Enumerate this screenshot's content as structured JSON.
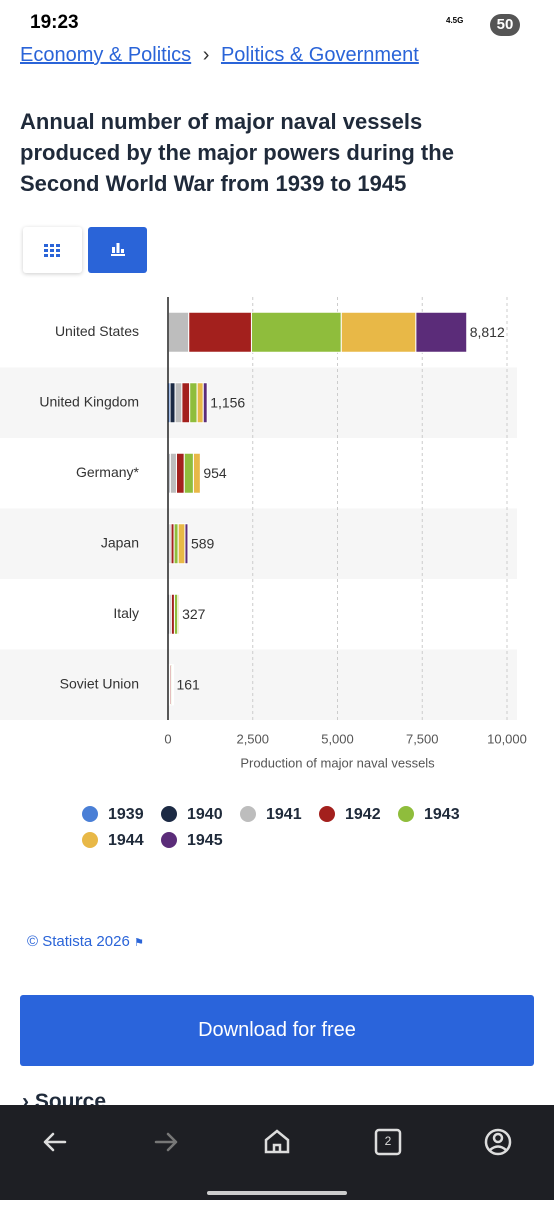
{
  "status": {
    "time": "19:23",
    "network": "4.5G",
    "battery": "50"
  },
  "breadcrumb": {
    "parent": "Economy & Politics",
    "separator": "›",
    "current": "Politics & Government"
  },
  "chart_data": {
    "type": "stacked-bar-horizontal",
    "title": "Annual number of major naval vessels produced by the major powers during the Second World War from 1939 to 1945",
    "categories": [
      "United States",
      "United Kingdom",
      "Germany*",
      "Japan",
      "Italy",
      "Soviet Union"
    ],
    "series": [
      {
        "name": "1939",
        "color": "#4a7fd6",
        "values": [
          0,
          60,
          30,
          10,
          10,
          10
        ]
      },
      {
        "name": "1940",
        "color": "#1c2a44",
        "values": [
          12,
          150,
          40,
          20,
          40,
          20
        ]
      },
      {
        "name": "1941",
        "color": "#bdbdbd",
        "values": [
          600,
          200,
          180,
          60,
          50,
          30
        ]
      },
      {
        "name": "1942",
        "color": "#a3201d",
        "values": [
          1850,
          230,
          230,
          90,
          90,
          40
        ]
      },
      {
        "name": "1943",
        "color": "#8fbd3c",
        "values": [
          2650,
          220,
          270,
          120,
          100,
          30
        ]
      },
      {
        "name": "1944",
        "color": "#e8b847",
        "values": [
          2200,
          180,
          204,
          200,
          37,
          20
        ]
      },
      {
        "name": "1945",
        "color": "#5b2c79",
        "values": [
          1500,
          116,
          0,
          89,
          0,
          11
        ]
      }
    ],
    "totals": [
      8812,
      1156,
      954,
      589,
      327,
      161
    ],
    "value_labels": [
      "8,812",
      "1,156",
      "954",
      "589",
      "327",
      "161"
    ],
    "xlim": [
      0,
      10000
    ],
    "xticks": [
      0,
      {
        "value": 2500,
        "label": "2,500"
      },
      {
        "value": 5000,
        "label": "5,000"
      },
      {
        "value": 7500,
        "label": "7,500"
      },
      {
        "value": 10000,
        "label": "10,000"
      }
    ],
    "xlabel": "Production of major naval vessels",
    "grid": true
  },
  "footer": {
    "copyright": "© Statista 2026",
    "download": "Download for free",
    "source": "Source"
  },
  "nav": {
    "tabs": "2"
  }
}
